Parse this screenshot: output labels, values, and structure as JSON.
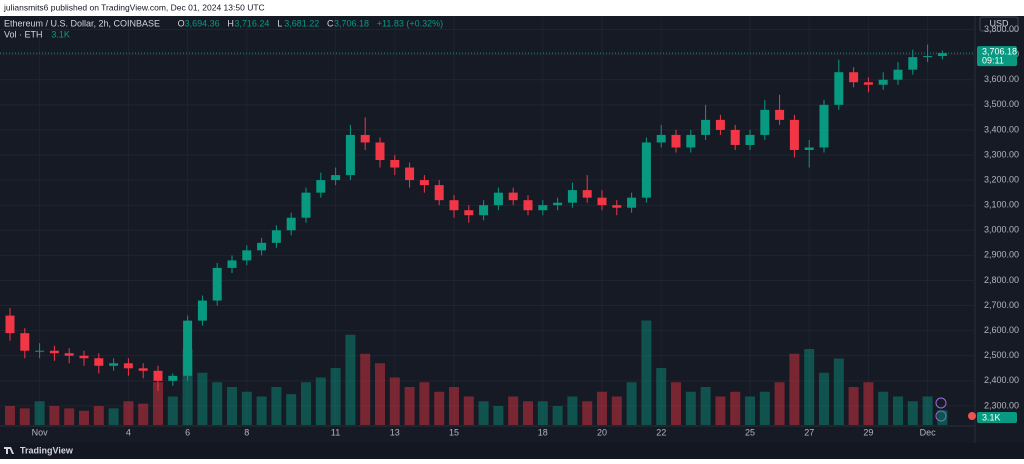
{
  "page": {
    "published": "juliansmits6 published on TradingView.com, Dec 01, 2024 13:50 UTC",
    "brand": "TradingView",
    "currency": "USD"
  },
  "chart_data": {
    "type": "candlestick",
    "legend": {
      "symbol": "Ethereum / U.S. Dollar, 2h, COINBASE",
      "ohlc": [
        {
          "key": "O",
          "value": "3,694.36"
        },
        {
          "key": "H",
          "value": "3,716.24"
        },
        {
          "key": "L",
          "value": "3,681.22"
        },
        {
          "key": "C",
          "value": "3,706.18"
        }
      ],
      "change": "+11.83 (+0.32%)",
      "volume_name": "Vol · ETH",
      "volume_value": "3.1K"
    },
    "last_price_label": "3,706.18",
    "countdown": "09:11",
    "up_color": "#089981",
    "down_color": "#f23645",
    "open": [
      2660,
      2590,
      2520,
      2520,
      2510,
      2500,
      2490,
      2460,
      2470,
      2450,
      2440,
      2400,
      2420,
      2640,
      2720,
      2850,
      2880,
      2920,
      2950,
      3000,
      3050,
      3150,
      3200,
      3220,
      3380,
      3350,
      3280,
      3250,
      3200,
      3180,
      3120,
      3080,
      3060,
      3100,
      3150,
      3120,
      3080,
      3100,
      3110,
      3160,
      3130,
      3100,
      3090,
      3130,
      3350,
      3380,
      3330,
      3380,
      3440,
      3400,
      3340,
      3380,
      3480,
      3440,
      3320,
      3330,
      3500,
      3630,
      3590,
      3580,
      3600,
      3640,
      3690,
      3694.36
    ],
    "high": [
      2690,
      2610,
      2550,
      2540,
      2530,
      2520,
      2510,
      2490,
      2490,
      2470,
      2460,
      2430,
      2660,
      2740,
      2870,
      2900,
      2940,
      2970,
      3020,
      3070,
      3170,
      3230,
      3250,
      3420,
      3450,
      3370,
      3300,
      3270,
      3220,
      3200,
      3140,
      3100,
      3120,
      3170,
      3170,
      3140,
      3120,
      3130,
      3190,
      3220,
      3160,
      3120,
      3150,
      3370,
      3420,
      3400,
      3400,
      3500,
      3460,
      3420,
      3400,
      3520,
      3540,
      3460,
      3360,
      3520,
      3680,
      3650,
      3610,
      3630,
      3670,
      3720,
      3740,
      3716.24
    ],
    "low": [
      2560,
      2490,
      2490,
      2480,
      2470,
      2460,
      2430,
      2440,
      2420,
      2410,
      2360,
      2380,
      2400,
      2620,
      2700,
      2830,
      2860,
      2900,
      2930,
      2980,
      3030,
      3130,
      3180,
      3200,
      3320,
      3250,
      3220,
      3170,
      3150,
      3100,
      3050,
      3030,
      3040,
      3080,
      3100,
      3060,
      3060,
      3080,
      3090,
      3110,
      3080,
      3060,
      3070,
      3110,
      3330,
      3310,
      3310,
      3360,
      3380,
      3320,
      3320,
      3360,
      3420,
      3290,
      3250,
      3310,
      3480,
      3570,
      3550,
      3560,
      3580,
      3620,
      3670,
      3681.22
    ],
    "close": [
      2590,
      2520,
      2520,
      2510,
      2500,
      2490,
      2460,
      2470,
      2450,
      2440,
      2400,
      2420,
      2640,
      2720,
      2850,
      2880,
      2920,
      2950,
      3000,
      3050,
      3150,
      3200,
      3220,
      3380,
      3350,
      3280,
      3250,
      3200,
      3180,
      3120,
      3080,
      3060,
      3100,
      3150,
      3120,
      3080,
      3100,
      3110,
      3160,
      3130,
      3100,
      3090,
      3130,
      3350,
      3380,
      3330,
      3380,
      3440,
      3400,
      3340,
      3380,
      3480,
      3440,
      3320,
      3330,
      3500,
      3630,
      3590,
      3580,
      3600,
      3640,
      3690,
      3694.36,
      3706.18
    ],
    "volume": [
      4000,
      3500,
      5000,
      4000,
      3500,
      3000,
      4000,
      3500,
      5000,
      4500,
      9000,
      6000,
      16000,
      11000,
      9000,
      8000,
      7000,
      6000,
      8000,
      6500,
      9000,
      10000,
      12000,
      19000,
      15000,
      13000,
      10000,
      8000,
      9000,
      7000,
      8000,
      6000,
      5000,
      4000,
      6000,
      5000,
      5000,
      4000,
      6000,
      5000,
      7000,
      6000,
      9000,
      22000,
      12000,
      9000,
      7000,
      8000,
      6000,
      7000,
      6000,
      7000,
      9000,
      15000,
      16000,
      11000,
      14000,
      8000,
      9000,
      7000,
      6000,
      5000,
      6000,
      3100
    ],
    "vlim": [
      0,
      24000
    ],
    "ylim": [
      2220,
      3850
    ],
    "yticks": [
      {
        "value": 2300,
        "label": "2,300.00"
      },
      {
        "value": 2400,
        "label": "2,400.00"
      },
      {
        "value": 2500,
        "label": "2,500.00"
      },
      {
        "value": 2600,
        "label": "2,600.00"
      },
      {
        "value": 2700,
        "label": "2,700.00"
      },
      {
        "value": 2800,
        "label": "2,800.00"
      },
      {
        "value": 2900,
        "label": "2,900.00"
      },
      {
        "value": 3000,
        "label": "3,000.00"
      },
      {
        "value": 3100,
        "label": "3,100.00"
      },
      {
        "value": 3200,
        "label": "3,200.00"
      },
      {
        "value": 3300,
        "label": "3,300.00"
      },
      {
        "value": 3400,
        "label": "3,400.00"
      },
      {
        "value": 3500,
        "label": "3,500.00"
      },
      {
        "value": 3600,
        "label": "3,600.00"
      },
      {
        "value": 3700,
        "label": "3,700.00"
      },
      {
        "value": 3800,
        "label": "3,800.00"
      }
    ],
    "xticks": [
      {
        "value": 2,
        "label": "Nov"
      },
      {
        "value": 8,
        "label": "4"
      },
      {
        "value": 12,
        "label": "6"
      },
      {
        "value": 16,
        "label": "8"
      },
      {
        "value": 22,
        "label": "11"
      },
      {
        "value": 26,
        "label": "13"
      },
      {
        "value": 30,
        "label": "15"
      },
      {
        "value": 36,
        "label": "18"
      },
      {
        "value": 40,
        "label": "20"
      },
      {
        "value": 44,
        "label": "22"
      },
      {
        "value": 50,
        "label": "25"
      },
      {
        "value": 54,
        "label": "27"
      },
      {
        "value": 58,
        "label": "29"
      },
      {
        "value": 62,
        "label": "Dec"
      }
    ],
    "grid": true
  }
}
